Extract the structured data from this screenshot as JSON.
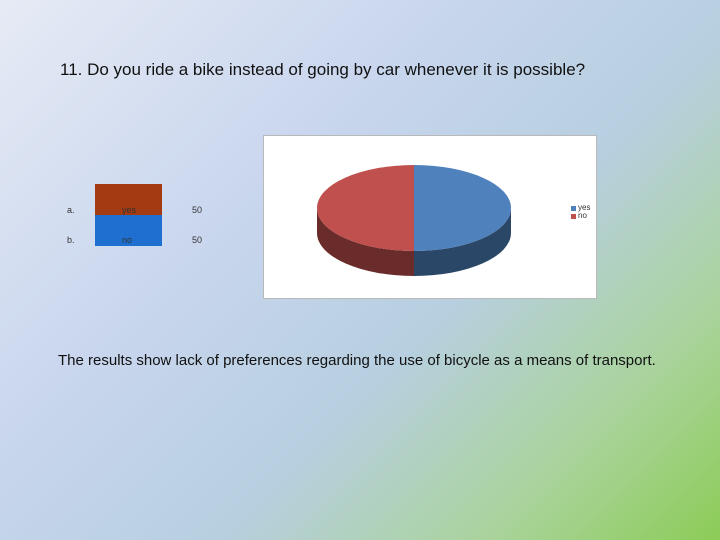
{
  "slide": {
    "question": "11. Do you ride a bike instead of going by car whenever it is possible?",
    "caption": "The results show lack of preferences regarding the use of bicycle as a means of transport."
  },
  "table": {
    "rows": [
      {
        "letter": "a.",
        "label": "yes",
        "value": "50",
        "color": "#a33a12"
      },
      {
        "letter": "b.",
        "label": "no",
        "value": "50",
        "color": "#1e6fd0"
      }
    ]
  },
  "chart_data": {
    "type": "pie",
    "categories": [
      "yes",
      "no"
    ],
    "values": [
      50,
      50
    ],
    "colors": [
      "#4f81bd",
      "#c0504d"
    ],
    "style": "3d",
    "legend": "right",
    "title": ""
  }
}
